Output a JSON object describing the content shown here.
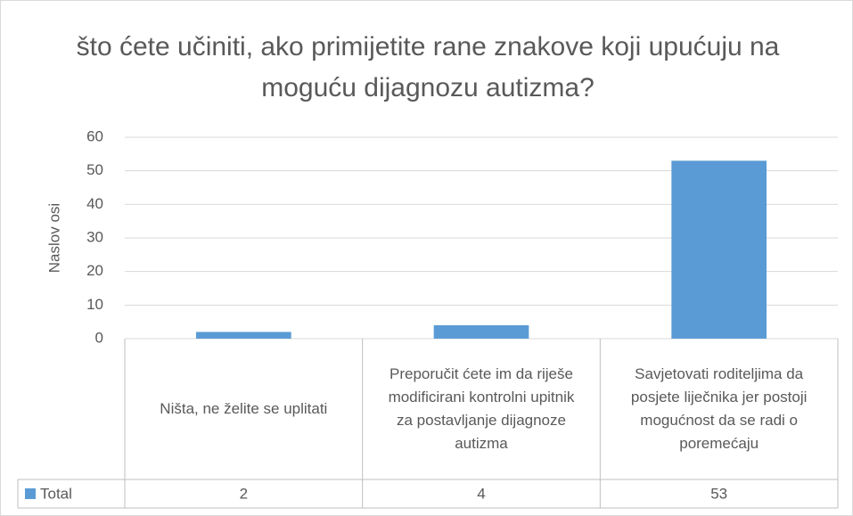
{
  "chart_data": {
    "type": "bar",
    "title": "što ćete učiniti, ako primijetite rane znakove koji upućuju na moguću dijagnozu autizma?",
    "y_axis_label": "Naslov osi",
    "categories": [
      "Ništa, ne želite se uplitati",
      "Preporučit ćete im da riješe modificirani kontrolni upitnik za postavljanje dijagnoze autizma",
      "Savjetovati roditeljima da posjete liječnika jer postoji mogućnost da se radi o poremećaju"
    ],
    "series": [
      {
        "name": "Total",
        "color": "#5b9bd5",
        "values": [
          2,
          4,
          53
        ]
      }
    ],
    "ylim": [
      0,
      60
    ],
    "yticks": [
      0,
      10,
      20,
      30,
      40,
      50,
      60
    ],
    "grid": true
  }
}
